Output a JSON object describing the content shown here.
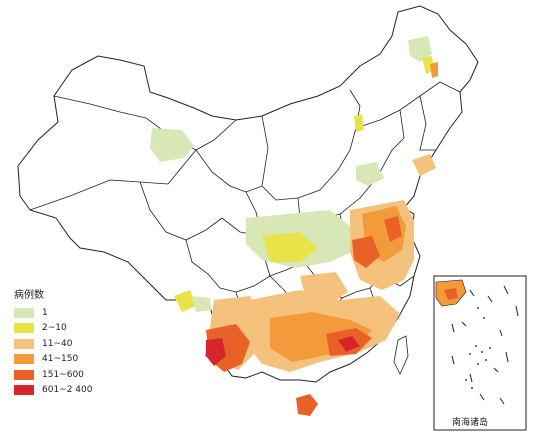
{
  "legend": {
    "title": "病例数",
    "items": [
      {
        "label": "1",
        "color": "#d7e7b6"
      },
      {
        "label": "2~10",
        "color": "#e9e34a"
      },
      {
        "label": "11~40",
        "color": "#f5c27d"
      },
      {
        "label": "41~150",
        "color": "#f39b3a"
      },
      {
        "label": "151~600",
        "color": "#ea6128"
      },
      {
        "label": "601~2 400",
        "color": "#d7262b"
      }
    ]
  },
  "inset": {
    "label": "南海诸岛"
  }
}
